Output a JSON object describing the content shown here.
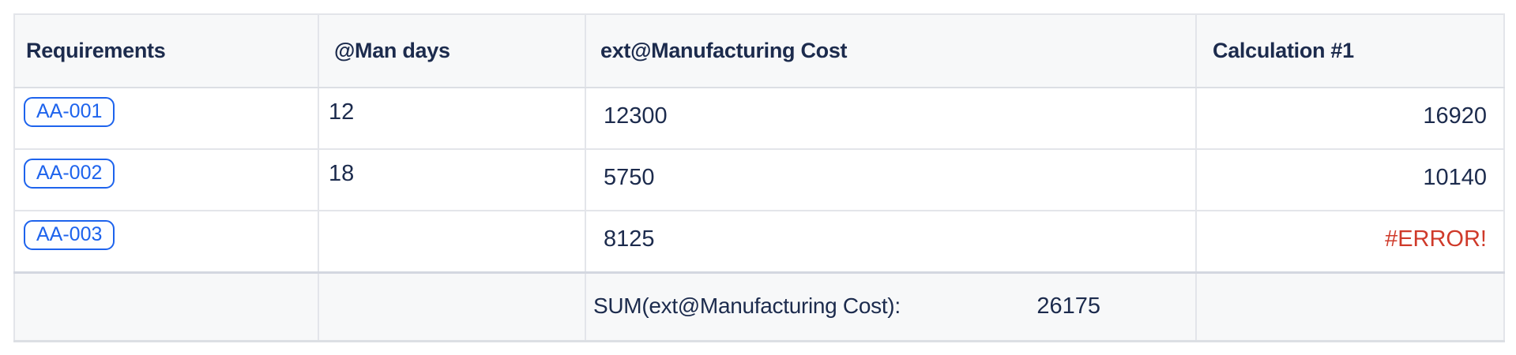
{
  "colors": {
    "header_bg": "#f7f8f9",
    "body_bg": "#ffffff",
    "border_light": "#e3e5ea",
    "border_outer": "#dcdfe4",
    "border_footer_top": "#d3d7e0",
    "text": "#1c2b4d",
    "link_blue": "#1d63ed",
    "error_red": "#cf3a2a"
  },
  "table": {
    "columns": [
      {
        "label": "Requirements"
      },
      {
        "label": "@Man days"
      },
      {
        "label": "ext@Manufacturing Cost"
      },
      {
        "label": "Calculation #1"
      }
    ],
    "rows": [
      {
        "requirement": "AA-001",
        "man_days": "12",
        "manufacturing_cost": "12300",
        "calculation": "16920"
      },
      {
        "requirement": "AA-002",
        "man_days": "18",
        "manufacturing_cost": "5750",
        "calculation": "10140"
      },
      {
        "requirement": "AA-003",
        "man_days": "",
        "manufacturing_cost": "8125",
        "calculation": "#ERROR!"
      }
    ],
    "footer": {
      "sum_label": "SUM(ext@Manufacturing Cost):",
      "sum_value": "26175"
    }
  }
}
